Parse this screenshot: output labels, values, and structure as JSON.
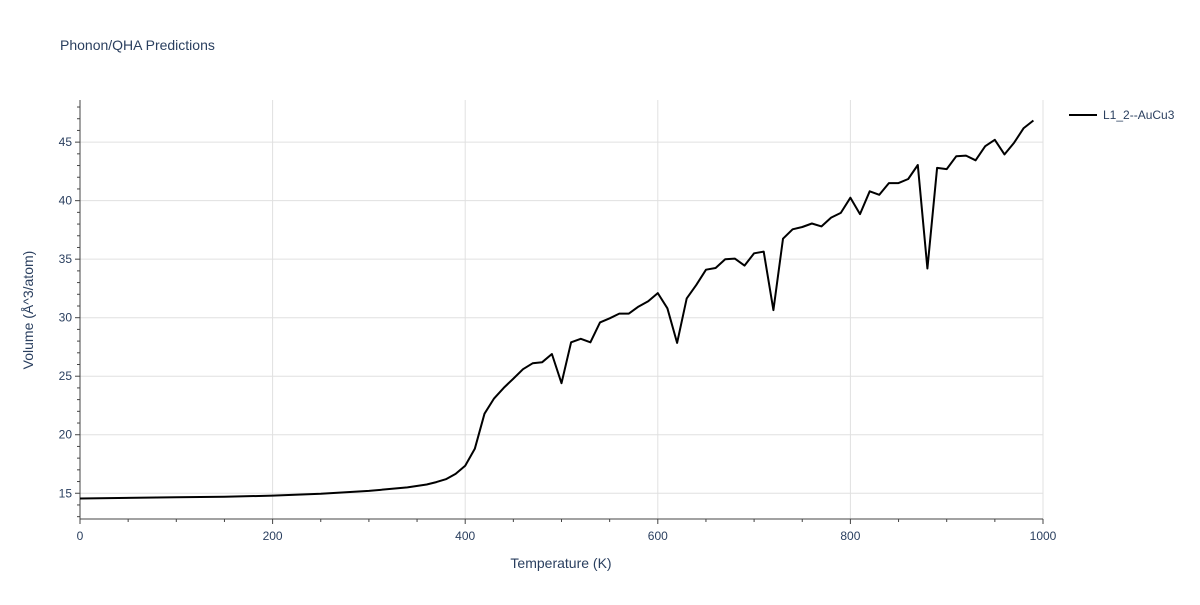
{
  "chart_data": {
    "type": "line",
    "title": "Phonon/QHA Predictions",
    "xlabel": "Temperature (K)",
    "ylabel": "Volume (Å^3/atom)",
    "xlim": [
      0,
      1000
    ],
    "ylim": [
      12.8,
      48.6
    ],
    "xticks": [
      0,
      200,
      400,
      600,
      800,
      1000
    ],
    "yticks": [
      15,
      20,
      25,
      30,
      35,
      40,
      45
    ],
    "grid": true,
    "legend_position": "top-right",
    "series": [
      {
        "name": "L1_2--AuCu3",
        "color": "#000000",
        "x": [
          0,
          100,
          150,
          200,
          250,
          300,
          340,
          360,
          370,
          380,
          390,
          400,
          410,
          420,
          430,
          440,
          450,
          460,
          470,
          480,
          490,
          500,
          510,
          520,
          530,
          540,
          550,
          560,
          570,
          580,
          590,
          600,
          610,
          620,
          630,
          640,
          650,
          660,
          670,
          680,
          690,
          700,
          710,
          720,
          730,
          740,
          750,
          760,
          770,
          780,
          790,
          800,
          810,
          820,
          830,
          840,
          850,
          860,
          870,
          880,
          890,
          900,
          910,
          920,
          930,
          940,
          950,
          960,
          970,
          980,
          990
        ],
        "y": [
          14.55,
          14.65,
          14.7,
          14.8,
          14.95,
          15.2,
          15.5,
          15.75,
          15.95,
          16.2,
          16.65,
          17.35,
          18.8,
          21.8,
          23.1,
          24.0,
          24.8,
          25.6,
          26.1,
          26.2,
          26.9,
          24.4,
          27.9,
          28.2,
          27.9,
          29.6,
          29.95,
          30.35,
          30.35,
          30.95,
          31.4,
          32.1,
          30.8,
          27.85,
          31.65,
          32.8,
          34.1,
          34.25,
          34.99,
          35.05,
          34.45,
          35.5,
          35.65,
          30.65,
          36.75,
          37.55,
          37.75,
          38.05,
          37.8,
          38.55,
          38.95,
          40.25,
          38.85,
          40.8,
          40.5,
          41.5,
          41.5,
          41.85,
          43.05,
          34.2,
          42.8,
          42.7,
          43.8,
          43.85,
          43.45,
          44.65,
          45.2,
          43.95,
          44.95,
          46.2,
          46.85
        ]
      }
    ]
  }
}
